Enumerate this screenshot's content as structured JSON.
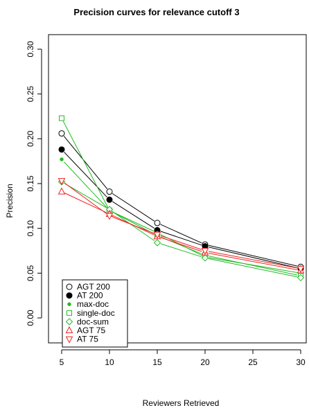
{
  "chart_data": {
    "type": "line",
    "title": "Precision curves for relevance cutoff 3",
    "xlabel": "Reviewers Retrieved",
    "ylabel": "Precision",
    "x": [
      5,
      10,
      15,
      20,
      30
    ],
    "xlim": [
      5,
      30
    ],
    "ylim": [
      0,
      0.3
    ],
    "xticks": [
      "5",
      "10",
      "15",
      "20",
      "25",
      "30"
    ],
    "yticks": [
      "0.00",
      "0.05",
      "0.10",
      "0.15",
      "0.20",
      "0.25",
      "0.30"
    ],
    "legend_position": "bottom-left",
    "series": [
      {
        "name": "AGT 200",
        "color": "#000000",
        "marker": "open-circle",
        "values": [
          0.206,
          0.141,
          0.106,
          0.082,
          0.057
        ]
      },
      {
        "name": "AT 200",
        "color": "#000000",
        "marker": "filled-circle",
        "values": [
          0.188,
          0.132,
          0.098,
          0.08,
          0.055
        ]
      },
      {
        "name": "max-doc",
        "color": "#22bb22",
        "marker": "small-dot",
        "values": [
          0.177,
          0.12,
          0.095,
          0.068,
          0.05
        ]
      },
      {
        "name": "single-doc",
        "color": "#22bb22",
        "marker": "open-square",
        "values": [
          0.223,
          0.12,
          0.092,
          0.07,
          0.047
        ]
      },
      {
        "name": "doc-sum",
        "color": "#22bb22",
        "marker": "open-diamond",
        "values": [
          0.152,
          0.121,
          0.084,
          0.067,
          0.045
        ]
      },
      {
        "name": "AGT 75",
        "color": "#ee2222",
        "marker": "open-triangle-up",
        "values": [
          0.141,
          0.116,
          0.091,
          0.073,
          0.053
        ]
      },
      {
        "name": "AT 75",
        "color": "#ee2222",
        "marker": "open-triangle-down",
        "values": [
          0.153,
          0.114,
          0.093,
          0.075,
          0.055
        ]
      }
    ]
  }
}
